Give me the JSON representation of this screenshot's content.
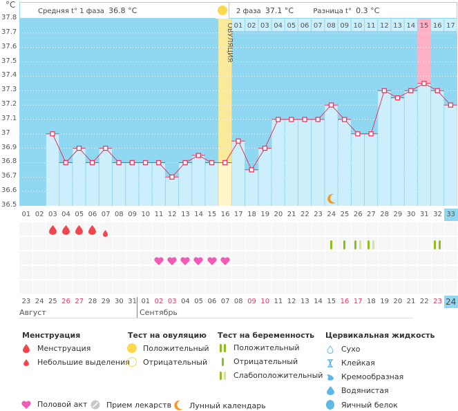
{
  "header": {
    "phase1_label": "Средняя t° 1 фаза",
    "phase1_value": "36.8 °C",
    "phase2_label": "2 фаза",
    "phase2_value": "37.1 °C",
    "diff_label": "Разница t°",
    "diff_value": "0.3 °C"
  },
  "ovulation_label": "ОВУЛЯЦИЯ",
  "chart_data": {
    "type": "line",
    "title": "",
    "ylabel": "°C",
    "ylim": [
      36.5,
      37.8
    ],
    "yticks": [
      "37.8",
      "37.7",
      "37.6",
      "37.5",
      "37.4",
      "37.3",
      "37.2",
      "37.1",
      "37",
      "36.9",
      "36.8",
      "36.7",
      "36.6",
      "36.5"
    ],
    "cycle_days": [
      "01",
      "02",
      "03",
      "04",
      "05",
      "06",
      "07",
      "08",
      "09",
      "10",
      "11",
      "12",
      "13",
      "14",
      "15",
      "16",
      "17",
      "18",
      "19",
      "20",
      "21",
      "22",
      "23",
      "24",
      "25",
      "26",
      "27",
      "28",
      "29",
      "30",
      "31",
      "32",
      "33"
    ],
    "series": [
      {
        "name": "Базальная температура",
        "values": [
          null,
          null,
          37.0,
          36.8,
          36.9,
          36.8,
          36.9,
          36.8,
          36.8,
          36.8,
          36.8,
          36.7,
          36.8,
          36.85,
          36.8,
          36.8,
          36.95,
          36.75,
          36.9,
          37.1,
          37.1,
          37.1,
          37.1,
          37.2,
          37.1,
          37.0,
          37.0,
          37.3,
          37.25,
          37.3,
          37.35,
          37.3,
          37.2
        ]
      }
    ],
    "ovulation_day": "16",
    "luteal_days": [
      "01",
      "02",
      "03",
      "04",
      "05",
      "06",
      "07",
      "08",
      "09",
      "10",
      "11",
      "12",
      "13",
      "14",
      "15",
      "16",
      "17"
    ],
    "highlighted_luteal_day": "15",
    "current_cycle_day": "33",
    "lunar_day": "24",
    "grid": true
  },
  "markers": {
    "menstruation": [
      {
        "day": "03",
        "type": "heavy"
      },
      {
        "day": "04",
        "type": "heavy"
      },
      {
        "day": "05",
        "type": "heavy"
      },
      {
        "day": "06",
        "type": "heavy"
      },
      {
        "day": "07",
        "type": "light"
      }
    ],
    "pregnancy_test": [
      {
        "day": "24",
        "result": "negative"
      },
      {
        "day": "25",
        "result": "negative"
      },
      {
        "day": "26",
        "result": "faint"
      },
      {
        "day": "27",
        "result": "faint"
      },
      {
        "day": "32",
        "result": "positive"
      }
    ],
    "intercourse": [
      "11",
      "12",
      "13",
      "14",
      "15",
      "16"
    ]
  },
  "calendar_dates": [
    {
      "d": "23",
      "red": false
    },
    {
      "d": "24",
      "red": false
    },
    {
      "d": "25",
      "red": false
    },
    {
      "d": "26",
      "red": true
    },
    {
      "d": "27",
      "red": true
    },
    {
      "d": "28",
      "red": false
    },
    {
      "d": "29",
      "red": false
    },
    {
      "d": "30",
      "red": false
    },
    {
      "d": "31",
      "red": false
    },
    {
      "d": "01",
      "red": false
    },
    {
      "d": "02",
      "red": true
    },
    {
      "d": "03",
      "red": true
    },
    {
      "d": "04",
      "red": false
    },
    {
      "d": "05",
      "red": false
    },
    {
      "d": "06",
      "red": false
    },
    {
      "d": "07",
      "red": false
    },
    {
      "d": "08",
      "red": false
    },
    {
      "d": "09",
      "red": true
    },
    {
      "d": "10",
      "red": true
    },
    {
      "d": "11",
      "red": false
    },
    {
      "d": "12",
      "red": false
    },
    {
      "d": "13",
      "red": false
    },
    {
      "d": "14",
      "red": false
    },
    {
      "d": "15",
      "red": false
    },
    {
      "d": "16",
      "red": true
    },
    {
      "d": "17",
      "red": true
    },
    {
      "d": "18",
      "red": false
    },
    {
      "d": "19",
      "red": false
    },
    {
      "d": "20",
      "red": false
    },
    {
      "d": "21",
      "red": false
    },
    {
      "d": "22",
      "red": false
    },
    {
      "d": "23",
      "red": true
    },
    {
      "d": "24",
      "red": false,
      "today": true
    }
  ],
  "months": {
    "first": "Август",
    "second": "Сентябрь"
  },
  "legend": {
    "menstruation": {
      "title": "Менструация",
      "items": [
        "Менструация",
        "Небольшие выделения"
      ]
    },
    "ovulation_test": {
      "title": "Тест на овуляцию",
      "items": [
        "Положительный",
        "Отрицательный"
      ]
    },
    "pregnancy_test": {
      "title": "Тест на беременность",
      "items": [
        "Положительный",
        "Отрицательный",
        "Слабоположительный"
      ]
    },
    "cervical_fluid": {
      "title": "Цервикальная жидкость",
      "items": [
        "Сухо",
        "Клейкая",
        "Кремообразная",
        "Водянистая",
        "Яичный белок"
      ]
    },
    "other": [
      "Половой акт",
      "Прием лекарств",
      "Лунный календарь"
    ]
  },
  "colors": {
    "plot_bg": "#90d8f2",
    "bar_fill": "#cdeefb",
    "line": "#e8365d",
    "ovulation": "#fbe99a",
    "luteal_highlight": "#ffb0c4",
    "blood": "#f0474f",
    "heart": "#f25bb5",
    "test_green": "#8cbf1a",
    "test_faint": "#cfe3a6",
    "moon": "#f29a1e"
  }
}
